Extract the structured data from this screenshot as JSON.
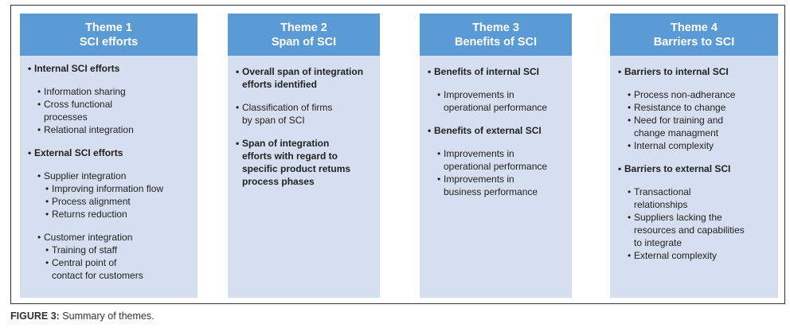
{
  "themes": [
    {
      "title": "Theme 1",
      "subtitle": "SCI efforts",
      "groups": [
        [
          {
            "t": "Internal SCI efforts",
            "l": 0,
            "b": true
          }
        ],
        [
          {
            "t": "Information sharing",
            "l": 1
          },
          {
            "t": "Cross functional\nprocesses",
            "l": 1
          },
          {
            "t": "Relational integration",
            "l": 1
          }
        ],
        [
          {
            "t": "External SCI efforts",
            "l": 0,
            "b": true
          }
        ],
        [
          {
            "t": "Supplier integration",
            "l": 1
          },
          {
            "t": "Improving information flow",
            "l": 2
          },
          {
            "t": "Process alignment",
            "l": 2
          },
          {
            "t": "Returns reduction",
            "l": 2
          }
        ],
        [
          {
            "t": "Customer integration",
            "l": 1
          },
          {
            "t": "Training of staff",
            "l": 2
          },
          {
            "t": "Central point of\ncontact for customers",
            "l": 2
          }
        ]
      ]
    },
    {
      "title": "Theme 2",
      "subtitle": "Span of SCI",
      "groups": [
        [
          {
            "t": "Overall span of integration\nefforts identified",
            "l": 0,
            "b": true
          }
        ],
        [
          {
            "t": "Classification of firms\nby span of SCI",
            "l": 0
          }
        ],
        [
          {
            "t": "Span of integration\nefforts with regard to\nspecific product retums\nprocess phases",
            "l": 0,
            "b": true
          }
        ]
      ]
    },
    {
      "title": "Theme 3",
      "subtitle": "Benefits of SCI",
      "groups": [
        [
          {
            "t": "Benefits of internal SCI",
            "l": 0,
            "b": true
          }
        ],
        [
          {
            "t": "Improvements in\noperational performance",
            "l": 1
          }
        ],
        [
          {
            "t": "Benefits of external SCI",
            "l": 0,
            "b": true
          }
        ],
        [
          {
            "t": "Improvements in\noperational performance",
            "l": 1
          },
          {
            "t": "Improvements in\nbusiness performance",
            "l": 1
          }
        ]
      ]
    },
    {
      "title": "Theme 4",
      "subtitle": "Barriers to SCI",
      "groups": [
        [
          {
            "t": "Barriers to internal SCI",
            "l": 0,
            "b": true
          }
        ],
        [
          {
            "t": "Process non-adherance",
            "l": 1
          },
          {
            "t": "Resistance to change",
            "l": 1
          },
          {
            "t": "Need for training and\nchange managment",
            "l": 1
          },
          {
            "t": "Internal complexity",
            "l": 1
          }
        ],
        [
          {
            "t": "Barriers to external SCI",
            "l": 0,
            "b": true
          }
        ],
        [
          {
            "t": "Transactional\nrelationships",
            "l": 1
          },
          {
            "t": "Suppliers lacking the\nresources and capabilities\nto integrate",
            "l": 1
          },
          {
            "t": "External complexity",
            "l": 1
          }
        ]
      ]
    }
  ],
  "caption": {
    "label": "FIGURE 3:",
    "text": " Summary of themes."
  },
  "colors": {
    "header": "#5b9bd5",
    "body": "#d5dfef"
  }
}
